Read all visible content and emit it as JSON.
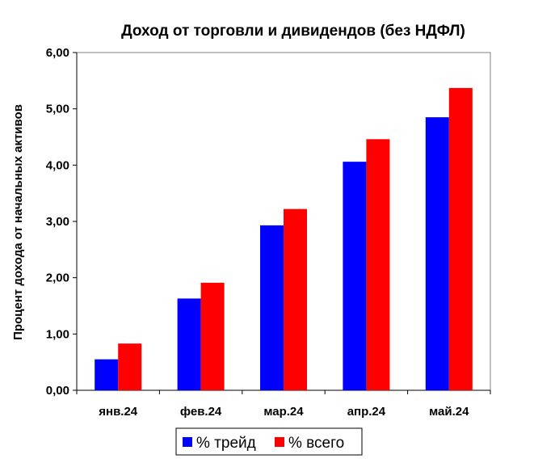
{
  "chart_data": {
    "type": "bar",
    "title": "Доход от торговли и дивидендов (без НДФЛ)",
    "xlabel": "",
    "ylabel": "Процент дохода от начальных активов",
    "categories": [
      "янв.24",
      "фев.24",
      "мар.24",
      "апр.24",
      "май.24"
    ],
    "series": [
      {
        "name": "% трейд",
        "color": "#0000ff",
        "values": [
          0.55,
          1.63,
          2.93,
          4.06,
          4.85
        ]
      },
      {
        "name": "% всего",
        "color": "#ff0000",
        "values": [
          0.83,
          1.91,
          3.22,
          4.46,
          5.37
        ]
      }
    ],
    "ylim": [
      0,
      6
    ],
    "yticks": [
      "0,00",
      "1,00",
      "2,00",
      "3,00",
      "4,00",
      "5,00",
      "6,00"
    ],
    "grid": false,
    "legend": "bottom"
  }
}
